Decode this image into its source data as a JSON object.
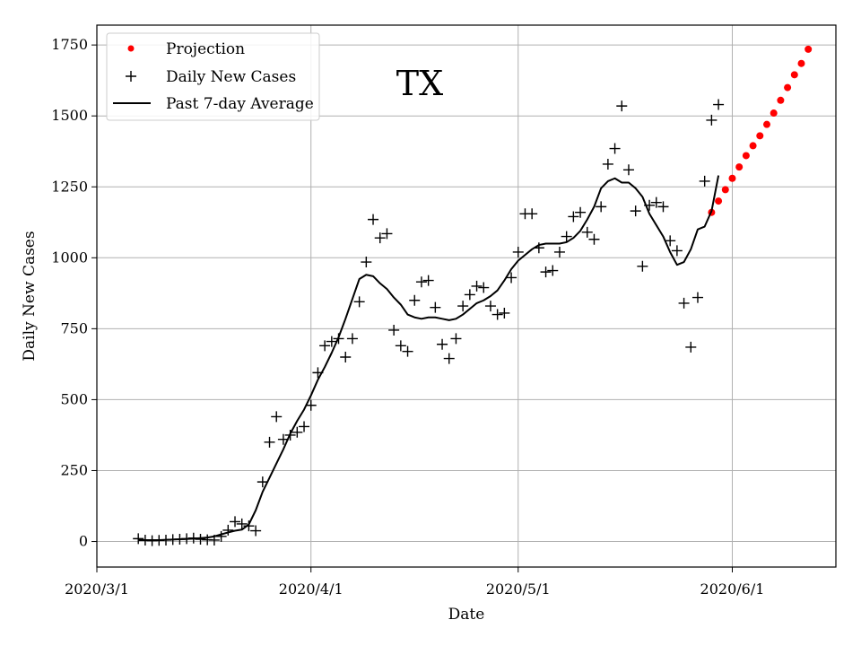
{
  "chart_data": {
    "type": "line",
    "title": "",
    "annotation": "TX",
    "xlabel": "Date",
    "ylabel": "Daily New Cases",
    "xlim": [
      "2020-03-01",
      "2020-06-16"
    ],
    "ylim": [
      -90,
      1820
    ],
    "x_ticks": [
      {
        "date": "2020-03-01",
        "label": "2020/3/1"
      },
      {
        "date": "2020-04-01",
        "label": "2020/4/1"
      },
      {
        "date": "2020-05-01",
        "label": "2020/5/1"
      },
      {
        "date": "2020-06-01",
        "label": "2020/6/1"
      }
    ],
    "y_ticks": [
      0,
      250,
      500,
      750,
      1000,
      1250,
      1500,
      1750
    ],
    "grid": true,
    "legend_position": "top-left",
    "series": [
      {
        "name": "Projection",
        "style": "dots",
        "color": "#ff0000",
        "points": [
          [
            "2020-05-29",
            1160
          ],
          [
            "2020-05-30",
            1200
          ],
          [
            "2020-05-31",
            1240
          ],
          [
            "2020-06-01",
            1280
          ],
          [
            "2020-06-02",
            1320
          ],
          [
            "2020-06-03",
            1360
          ],
          [
            "2020-06-04",
            1395
          ],
          [
            "2020-06-05",
            1430
          ],
          [
            "2020-06-06",
            1470
          ],
          [
            "2020-06-07",
            1510
          ],
          [
            "2020-06-08",
            1555
          ],
          [
            "2020-06-09",
            1600
          ],
          [
            "2020-06-10",
            1645
          ],
          [
            "2020-06-11",
            1685
          ],
          [
            "2020-06-12",
            1735
          ]
        ]
      },
      {
        "name": "Daily New Cases",
        "style": "plus",
        "color": "#000000",
        "points": [
          [
            "2020-03-07",
            10
          ],
          [
            "2020-03-08",
            5
          ],
          [
            "2020-03-09",
            3
          ],
          [
            "2020-03-10",
            4
          ],
          [
            "2020-03-11",
            5
          ],
          [
            "2020-03-12",
            7
          ],
          [
            "2020-03-13",
            8
          ],
          [
            "2020-03-14",
            10
          ],
          [
            "2020-03-15",
            12
          ],
          [
            "2020-03-16",
            8
          ],
          [
            "2020-03-17",
            6
          ],
          [
            "2020-03-18",
            5
          ],
          [
            "2020-03-19",
            18
          ],
          [
            "2020-03-20",
            40
          ],
          [
            "2020-03-21",
            70
          ],
          [
            "2020-03-22",
            62
          ],
          [
            "2020-03-23",
            55
          ],
          [
            "2020-03-24",
            38
          ],
          [
            "2020-03-25",
            210
          ],
          [
            "2020-03-26",
            350
          ],
          [
            "2020-03-27",
            440
          ],
          [
            "2020-03-28",
            360
          ],
          [
            "2020-03-29",
            375
          ],
          [
            "2020-03-30",
            385
          ],
          [
            "2020-03-31",
            405
          ],
          [
            "2020-04-01",
            480
          ],
          [
            "2020-04-02",
            595
          ],
          [
            "2020-04-03",
            690
          ],
          [
            "2020-04-04",
            705
          ],
          [
            "2020-04-05",
            715
          ],
          [
            "2020-04-06",
            650
          ],
          [
            "2020-04-07",
            715
          ],
          [
            "2020-04-08",
            845
          ],
          [
            "2020-04-09",
            985
          ],
          [
            "2020-04-10",
            1135
          ],
          [
            "2020-04-11",
            1070
          ],
          [
            "2020-04-12",
            1085
          ],
          [
            "2020-04-13",
            745
          ],
          [
            "2020-04-14",
            690
          ],
          [
            "2020-04-15",
            670
          ],
          [
            "2020-04-16",
            850
          ],
          [
            "2020-04-17",
            915
          ],
          [
            "2020-04-18",
            920
          ],
          [
            "2020-04-19",
            825
          ],
          [
            "2020-04-20",
            695
          ],
          [
            "2020-04-21",
            645
          ],
          [
            "2020-04-22",
            715
          ],
          [
            "2020-04-23",
            830
          ],
          [
            "2020-04-24",
            870
          ],
          [
            "2020-04-25",
            900
          ],
          [
            "2020-04-26",
            895
          ],
          [
            "2020-04-27",
            830
          ],
          [
            "2020-04-28",
            800
          ],
          [
            "2020-04-29",
            805
          ],
          [
            "2020-04-30",
            930
          ],
          [
            "2020-05-01",
            1020
          ],
          [
            "2020-05-02",
            1155
          ],
          [
            "2020-05-03",
            1155
          ],
          [
            "2020-05-04",
            1035
          ],
          [
            "2020-05-05",
            950
          ],
          [
            "2020-05-06",
            955
          ],
          [
            "2020-05-07",
            1020
          ],
          [
            "2020-05-08",
            1075
          ],
          [
            "2020-05-09",
            1145
          ],
          [
            "2020-05-10",
            1160
          ],
          [
            "2020-05-11",
            1090
          ],
          [
            "2020-05-12",
            1065
          ],
          [
            "2020-05-13",
            1180
          ],
          [
            "2020-05-14",
            1330
          ],
          [
            "2020-05-15",
            1385
          ],
          [
            "2020-05-16",
            1535
          ],
          [
            "2020-05-17",
            1310
          ],
          [
            "2020-05-18",
            1165
          ],
          [
            "2020-05-19",
            970
          ],
          [
            "2020-05-20",
            1185
          ],
          [
            "2020-05-21",
            1195
          ],
          [
            "2020-05-22",
            1180
          ],
          [
            "2020-05-23",
            1060
          ],
          [
            "2020-05-24",
            1025
          ],
          [
            "2020-05-25",
            840
          ],
          [
            "2020-05-26",
            685
          ],
          [
            "2020-05-27",
            860
          ],
          [
            "2020-05-28",
            1270
          ],
          [
            "2020-05-29",
            1485
          ],
          [
            "2020-05-30",
            1540
          ]
        ]
      },
      {
        "name": "Past 7-day Average",
        "style": "line",
        "color": "#000000",
        "points": [
          [
            "2020-03-07",
            5
          ],
          [
            "2020-03-08",
            5
          ],
          [
            "2020-03-09",
            5
          ],
          [
            "2020-03-10",
            5
          ],
          [
            "2020-03-11",
            6
          ],
          [
            "2020-03-12",
            7
          ],
          [
            "2020-03-13",
            8
          ],
          [
            "2020-03-14",
            9
          ],
          [
            "2020-03-15",
            10
          ],
          [
            "2020-03-16",
            12
          ],
          [
            "2020-03-17",
            14
          ],
          [
            "2020-03-18",
            18
          ],
          [
            "2020-03-19",
            25
          ],
          [
            "2020-03-20",
            32
          ],
          [
            "2020-03-21",
            38
          ],
          [
            "2020-03-22",
            42
          ],
          [
            "2020-03-23",
            60
          ],
          [
            "2020-03-24",
            110
          ],
          [
            "2020-03-25",
            175
          ],
          [
            "2020-03-26",
            225
          ],
          [
            "2020-03-27",
            275
          ],
          [
            "2020-03-28",
            325
          ],
          [
            "2020-03-29",
            380
          ],
          [
            "2020-03-30",
            425
          ],
          [
            "2020-03-31",
            465
          ],
          [
            "2020-04-01",
            515
          ],
          [
            "2020-04-02",
            570
          ],
          [
            "2020-04-03",
            615
          ],
          [
            "2020-04-04",
            665
          ],
          [
            "2020-04-05",
            720
          ],
          [
            "2020-04-06",
            785
          ],
          [
            "2020-04-07",
            855
          ],
          [
            "2020-04-08",
            925
          ],
          [
            "2020-04-09",
            940
          ],
          [
            "2020-04-10",
            935
          ],
          [
            "2020-04-11",
            910
          ],
          [
            "2020-04-12",
            890
          ],
          [
            "2020-04-13",
            860
          ],
          [
            "2020-04-14",
            835
          ],
          [
            "2020-04-15",
            800
          ],
          [
            "2020-04-16",
            790
          ],
          [
            "2020-04-17",
            785
          ],
          [
            "2020-04-18",
            790
          ],
          [
            "2020-04-19",
            790
          ],
          [
            "2020-04-20",
            785
          ],
          [
            "2020-04-21",
            780
          ],
          [
            "2020-04-22",
            785
          ],
          [
            "2020-04-23",
            800
          ],
          [
            "2020-04-24",
            820
          ],
          [
            "2020-04-25",
            840
          ],
          [
            "2020-04-26",
            850
          ],
          [
            "2020-04-27",
            865
          ],
          [
            "2020-04-28",
            885
          ],
          [
            "2020-04-29",
            920
          ],
          [
            "2020-04-30",
            960
          ],
          [
            "2020-05-01",
            990
          ],
          [
            "2020-05-02",
            1010
          ],
          [
            "2020-05-03",
            1030
          ],
          [
            "2020-05-04",
            1045
          ],
          [
            "2020-05-05",
            1050
          ],
          [
            "2020-05-06",
            1050
          ],
          [
            "2020-05-07",
            1050
          ],
          [
            "2020-05-08",
            1055
          ],
          [
            "2020-05-09",
            1070
          ],
          [
            "2020-05-10",
            1095
          ],
          [
            "2020-05-11",
            1135
          ],
          [
            "2020-05-12",
            1180
          ],
          [
            "2020-05-13",
            1245
          ],
          [
            "2020-05-14",
            1270
          ],
          [
            "2020-05-15",
            1280
          ],
          [
            "2020-05-16",
            1265
          ],
          [
            "2020-05-17",
            1265
          ],
          [
            "2020-05-18",
            1245
          ],
          [
            "2020-05-19",
            1215
          ],
          [
            "2020-05-20",
            1155
          ],
          [
            "2020-05-21",
            1115
          ],
          [
            "2020-05-22",
            1075
          ],
          [
            "2020-05-23",
            1020
          ],
          [
            "2020-05-24",
            975
          ],
          [
            "2020-05-25",
            985
          ],
          [
            "2020-05-26",
            1030
          ],
          [
            "2020-05-27",
            1100
          ],
          [
            "2020-05-28",
            1110
          ],
          [
            "2020-05-29",
            1165
          ],
          [
            "2020-05-30",
            1290
          ]
        ]
      }
    ]
  }
}
